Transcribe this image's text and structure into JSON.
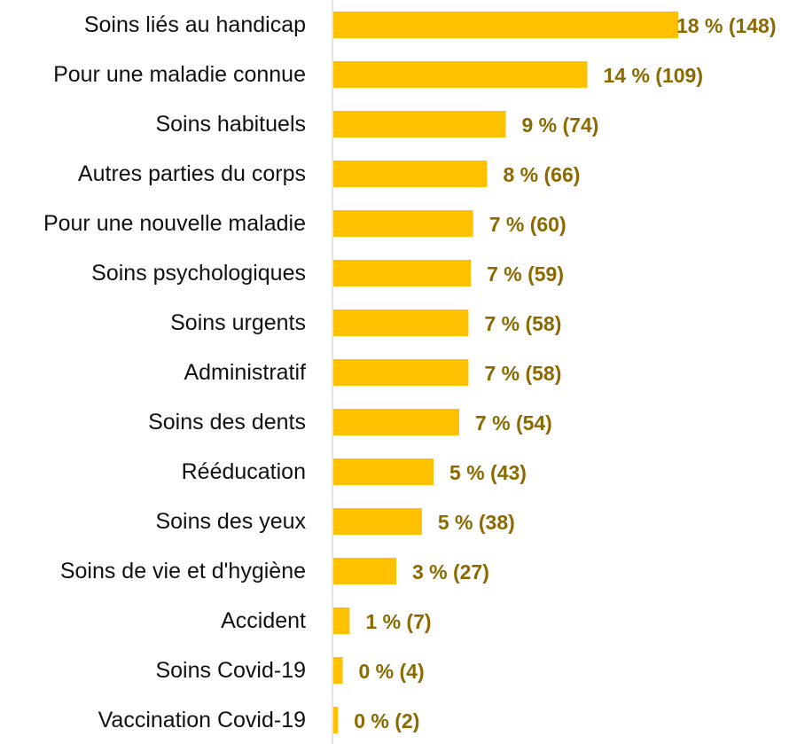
{
  "chart_data": {
    "type": "bar",
    "orientation": "horizontal",
    "title": "",
    "xlabel": "",
    "ylabel": "",
    "grid": false,
    "legend": "none",
    "categories": [
      "Soins liés au handicap",
      "Pour une maladie connue",
      "Soins habituels",
      "Autres parties du corps",
      "Pour une nouvelle maladie",
      "Soins psychologiques",
      "Soins urgents",
      "Administratif",
      "Soins des dents",
      "Rééducation",
      "Soins des yeux",
      "Soins de vie et d'hygiène",
      "Accident",
      "Soins Covid-19",
      "Vaccination Covid-19"
    ],
    "values": [
      148,
      109,
      74,
      66,
      60,
      59,
      58,
      58,
      54,
      43,
      38,
      27,
      7,
      4,
      2
    ],
    "data_labels": [
      "18 % (148)",
      "14 % (109)",
      "9 % (74)",
      "8 % (66)",
      "7 % (60)",
      "7 % (59)",
      "7 % (58)",
      "7 % (58)",
      "7 % (54)",
      "5 % (43)",
      "5 % (38)",
      "3 % (27)",
      "1 % (7)",
      "0 % (4)",
      "0 % (2)"
    ],
    "xlim": [
      0,
      148
    ],
    "colors": {
      "bar": "#FFC000",
      "data_label": "#8C6A00",
      "axis": "#D9D9D9",
      "category_label": "#111111"
    }
  }
}
